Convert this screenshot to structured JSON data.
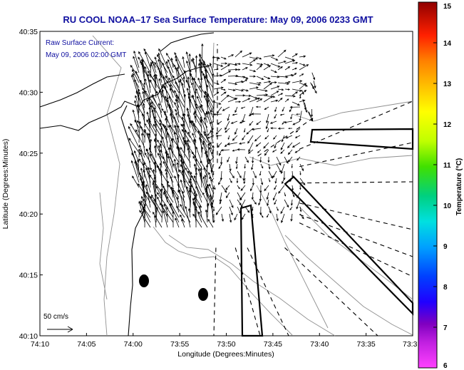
{
  "chart_data": {
    "type": "map",
    "title": "RU COOL  NOAA–17  Sea Surface Temperature:  May 09, 2006 0233 GMT",
    "annotation_lines": [
      "Raw Surface Current:",
      "May 09, 2006 02:00 GMT"
    ],
    "xlabel": "Longitude (Degrees:Minutes)",
    "ylabel": "Latitude (Degrees:Minutes)",
    "x_ticks": [
      "74:10",
      "74:05",
      "74:00",
      "73:55",
      "73:50",
      "73:45",
      "73:40",
      "73:35",
      "73:3"
    ],
    "y_ticks": [
      "40:35",
      "40:30",
      "40:25",
      "40:20",
      "40:15",
      "40:10"
    ],
    "xlim_minutes_west": [
      610,
      570
    ],
    "ylim_minutes_north": [
      610,
      635
    ],
    "scale_label": "50 cm/s",
    "colorbar": {
      "label": "Temperature (°C)",
      "ticks": [
        "15",
        "14",
        "13",
        "12",
        "11",
        "10",
        "9",
        "8",
        "7",
        "6"
      ],
      "range": [
        6,
        15
      ],
      "colors": [
        "#ff40ff",
        "#8000c0",
        "#0000ff",
        "#00a0ff",
        "#00e0e0",
        "#00d080",
        "#40e000",
        "#c0ff00",
        "#ffff00",
        "#ffc000",
        "#ff8000",
        "#ff2000",
        "#c00000",
        "#800000"
      ]
    },
    "grid": false
  }
}
